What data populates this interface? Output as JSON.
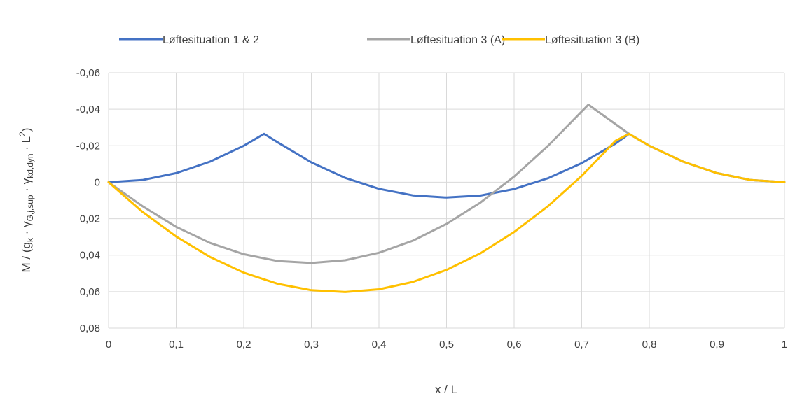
{
  "chart_data": {
    "type": "line",
    "title": "",
    "xlabel": "x / L",
    "ylabel": {
      "prefix": "M / (g",
      "sub1": "k",
      "mid1": " · γ",
      "sub2": "G,j,sup",
      "mid2": " · γ",
      "sub3": "kd,dyn",
      "mid3": " · L",
      "sup": "2",
      "suffix": ")"
    },
    "xlim": [
      0,
      1
    ],
    "ylim": [
      -0.06,
      0.08
    ],
    "y_inverted": true,
    "grid": true,
    "legend_position": "top",
    "x_ticks": [
      0,
      0.1,
      0.2,
      0.3,
      0.4,
      0.5,
      0.6,
      0.7,
      0.8,
      0.9,
      1
    ],
    "x_tick_labels": [
      "0",
      "0,1",
      "0,2",
      "0,3",
      "0,4",
      "0,5",
      "0,6",
      "0,7",
      "0,8",
      "0,9",
      "1"
    ],
    "y_ticks": [
      -0.06,
      -0.04,
      -0.02,
      0,
      0.02,
      0.04,
      0.06,
      0.08
    ],
    "y_tick_labels": [
      "-0,06",
      "-0,04",
      "-0,02",
      "0",
      "0,02",
      "0,04",
      "0,06",
      "0,08"
    ],
    "series": [
      {
        "name": "Løftesituation 1 & 2",
        "color": "#4472C4",
        "x": [
          0,
          0.05,
          0.1,
          0.15,
          0.2,
          0.23,
          0.25,
          0.3,
          0.35,
          0.4,
          0.45,
          0.5,
          0.55,
          0.6,
          0.65,
          0.7,
          0.75,
          0.77,
          0.8,
          0.85,
          0.9,
          0.95,
          1
        ],
        "y": [
          0,
          -0.0012,
          -0.005,
          -0.0113,
          -0.02,
          -0.0265,
          -0.0219,
          -0.0109,
          -0.0024,
          0.0036,
          0.0072,
          0.0084,
          0.0073,
          0.0037,
          -0.0022,
          -0.0105,
          -0.0212,
          -0.0265,
          -0.02,
          -0.0113,
          -0.005,
          -0.0012,
          0
        ]
      },
      {
        "name": "Løftesituation 3 (A)",
        "color": "#A5A5A5",
        "x": [
          0,
          0.05,
          0.1,
          0.15,
          0.2,
          0.25,
          0.3,
          0.35,
          0.4,
          0.45,
          0.5,
          0.55,
          0.6,
          0.65,
          0.71,
          0.74,
          0.77,
          0.8,
          0.85,
          0.9,
          0.95,
          1
        ],
        "y": [
          0,
          0.0131,
          0.0245,
          0.0333,
          0.0395,
          0.0432,
          0.0443,
          0.0428,
          0.0387,
          0.0321,
          0.0229,
          0.0112,
          -0.0031,
          -0.0199,
          -0.0425,
          -0.0345,
          -0.0265,
          -0.02,
          -0.0113,
          -0.005,
          -0.0012,
          0
        ]
      },
      {
        "name": "Løftesituation 3 (B)",
        "color": "#FFC000",
        "x": [
          0,
          0.05,
          0.1,
          0.15,
          0.2,
          0.25,
          0.3,
          0.35,
          0.4,
          0.45,
          0.5,
          0.55,
          0.6,
          0.65,
          0.7,
          0.75,
          0.77,
          0.8,
          0.85,
          0.9,
          0.95,
          1
        ],
        "y": [
          0,
          0.0162,
          0.0298,
          0.041,
          0.0496,
          0.0557,
          0.0592,
          0.0602,
          0.0587,
          0.0547,
          0.0481,
          0.039,
          0.0273,
          0.0132,
          -0.0035,
          -0.0227,
          -0.0265,
          -0.02,
          -0.0113,
          -0.005,
          -0.0012,
          0
        ]
      }
    ]
  }
}
